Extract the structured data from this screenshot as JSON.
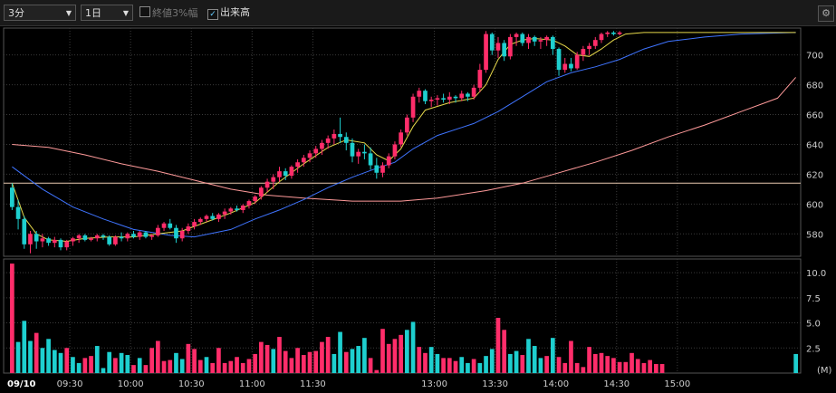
{
  "toolbar": {
    "interval": "3分",
    "period": "1日",
    "close3_label": "終値3%幅",
    "close3_checked": false,
    "volume_label": "出来高",
    "volume_checked": true
  },
  "colors": {
    "up": "#ff2d6a",
    "down": "#1ecfcf",
    "ma_fast": "#e6d84a",
    "ma_mid": "#3f74ff",
    "ma_slow": "#ff9a9a",
    "ref_line": "#e8c9b0",
    "grid": "#3a3a3a",
    "text": "#cccccc"
  },
  "chart_data": [
    {
      "type": "candlestick",
      "ylim": [
        565,
        718
      ],
      "yticks": [
        580,
        600,
        620,
        640,
        660,
        680,
        700
      ],
      "reference_line": 614,
      "x_tick_labels": [
        "09/10",
        "09:30",
        "10:00",
        "10:30",
        "11:00",
        "11:30",
        "13:00",
        "13:30",
        "14:00",
        "14:30",
        "15:00"
      ],
      "candles": [
        [
          611,
          614,
          596,
          598
        ],
        [
          598,
          603,
          583,
          590
        ],
        [
          590,
          592,
          570,
          573
        ],
        [
          573,
          582,
          567,
          580
        ],
        [
          580,
          582,
          570,
          575
        ],
        [
          575,
          580,
          571,
          577
        ],
        [
          577,
          578,
          572,
          574
        ],
        [
          574,
          578,
          571,
          576
        ],
        [
          576,
          577,
          569,
          571
        ],
        [
          571,
          576,
          569,
          575
        ],
        [
          575,
          578,
          572,
          577
        ],
        [
          577,
          580,
          574,
          579
        ],
        [
          579,
          580,
          575,
          576
        ],
        [
          576,
          578,
          575,
          577
        ],
        [
          577,
          580,
          575,
          579
        ],
        [
          579,
          580,
          576,
          578
        ],
        [
          578,
          579,
          572,
          573
        ],
        [
          573,
          579,
          572,
          578
        ],
        [
          578,
          581,
          575,
          577
        ],
        [
          577,
          581,
          575,
          580
        ],
        [
          580,
          582,
          577,
          578
        ],
        [
          578,
          582,
          576,
          581
        ],
        [
          581,
          582,
          577,
          578
        ],
        [
          578,
          580,
          576,
          579
        ],
        [
          579,
          586,
          578,
          584
        ],
        [
          584,
          588,
          582,
          587
        ],
        [
          587,
          590,
          583,
          584
        ],
        [
          584,
          586,
          574,
          577
        ],
        [
          577,
          584,
          575,
          582
        ],
        [
          582,
          587,
          580,
          585
        ],
        [
          585,
          590,
          583,
          588
        ],
        [
          588,
          591,
          586,
          590
        ],
        [
          590,
          593,
          588,
          592
        ],
        [
          592,
          594,
          589,
          590
        ],
        [
          590,
          594,
          588,
          593
        ],
        [
          593,
          597,
          590,
          595
        ],
        [
          595,
          598,
          593,
          597
        ],
        [
          597,
          599,
          595,
          596
        ],
        [
          596,
          600,
          594,
          599
        ],
        [
          599,
          603,
          597,
          602
        ],
        [
          602,
          606,
          600,
          605
        ],
        [
          605,
          612,
          603,
          611
        ],
        [
          611,
          617,
          608,
          615
        ],
        [
          615,
          620,
          610,
          618
        ],
        [
          618,
          625,
          615,
          622
        ],
        [
          622,
          624,
          616,
          619
        ],
        [
          619,
          626,
          617,
          625
        ],
        [
          625,
          630,
          621,
          628
        ],
        [
          628,
          633,
          625,
          631
        ],
        [
          631,
          636,
          628,
          634
        ],
        [
          634,
          639,
          631,
          637
        ],
        [
          637,
          643,
          633,
          641
        ],
        [
          641,
          646,
          637,
          644
        ],
        [
          644,
          650,
          640,
          647
        ],
        [
          647,
          658,
          641,
          645
        ],
        [
          645,
          648,
          636,
          641
        ],
        [
          641,
          644,
          628,
          632
        ],
        [
          632,
          637,
          627,
          635
        ],
        [
          635,
          640,
          630,
          634
        ],
        [
          634,
          638,
          623,
          626
        ],
        [
          626,
          631,
          617,
          621
        ],
        [
          621,
          628,
          618,
          626
        ],
        [
          626,
          634,
          624,
          632
        ],
        [
          632,
          642,
          630,
          640
        ],
        [
          640,
          650,
          638,
          648
        ],
        [
          648,
          660,
          646,
          658
        ],
        [
          658,
          674,
          655,
          672
        ],
        [
          672,
          678,
          668,
          676
        ],
        [
          676,
          677,
          667,
          669
        ],
        [
          669,
          672,
          665,
          670
        ],
        [
          670,
          673,
          666,
          671
        ],
        [
          671,
          674,
          668,
          670
        ],
        [
          670,
          675,
          667,
          672
        ],
        [
          672,
          673,
          668,
          671
        ],
        [
          671,
          676,
          669,
          674
        ],
        [
          674,
          675,
          669,
          672
        ],
        [
          672,
          680,
          670,
          678
        ],
        [
          678,
          694,
          675,
          690
        ],
        [
          690,
          716,
          688,
          714
        ],
        [
          714,
          715,
          700,
          703
        ],
        [
          703,
          712,
          698,
          708
        ],
        [
          708,
          710,
          696,
          699
        ],
        [
          699,
          714,
          697,
          712
        ],
        [
          712,
          715,
          706,
          714
        ],
        [
          714,
          715,
          706,
          708
        ],
        [
          708,
          714,
          704,
          712
        ],
        [
          712,
          713,
          706,
          709
        ],
        [
          709,
          712,
          704,
          710
        ],
        [
          710,
          713,
          706,
          712
        ],
        [
          712,
          713,
          700,
          704
        ],
        [
          704,
          705,
          686,
          690
        ],
        [
          690,
          698,
          688,
          694
        ],
        [
          694,
          698,
          689,
          691
        ],
        [
          691,
          702,
          690,
          700
        ],
        [
          700,
          706,
          696,
          704
        ],
        [
          704,
          708,
          700,
          706
        ],
        [
          706,
          712,
          704,
          710
        ],
        [
          710,
          715,
          708,
          714
        ],
        [
          714,
          716,
          712,
          715
        ],
        [
          715,
          716,
          713,
          714
        ],
        [
          714,
          716,
          713,
          715
        ]
      ],
      "ma_fast": [
        [
          0,
          614
        ],
        [
          2,
          591
        ],
        [
          4,
          580
        ],
        [
          6,
          576
        ],
        [
          9,
          575
        ],
        [
          12,
          577
        ],
        [
          16,
          578
        ],
        [
          20,
          578
        ],
        [
          24,
          580
        ],
        [
          28,
          582
        ],
        [
          32,
          588
        ],
        [
          36,
          594
        ],
        [
          40,
          601
        ],
        [
          44,
          615
        ],
        [
          48,
          627
        ],
        [
          52,
          638
        ],
        [
          55,
          643
        ],
        [
          58,
          641
        ],
        [
          60,
          633
        ],
        [
          62,
          629
        ],
        [
          64,
          637
        ],
        [
          66,
          652
        ],
        [
          68,
          663
        ],
        [
          72,
          668
        ],
        [
          76,
          671
        ],
        [
          78,
          680
        ],
        [
          80,
          697
        ],
        [
          82,
          707
        ],
        [
          84,
          710
        ],
        [
          86,
          711
        ],
        [
          89,
          710
        ],
        [
          91,
          706
        ],
        [
          93,
          700
        ],
        [
          95,
          699
        ],
        [
          97,
          704
        ],
        [
          99,
          710
        ],
        [
          101,
          714
        ],
        [
          104,
          715
        ],
        [
          108,
          715
        ],
        [
          129,
          715
        ]
      ],
      "ma_mid": [
        [
          0,
          625
        ],
        [
          5,
          610
        ],
        [
          10,
          598
        ],
        [
          15,
          590
        ],
        [
          20,
          583
        ],
        [
          26,
          579
        ],
        [
          30,
          578
        ],
        [
          36,
          583
        ],
        [
          40,
          590
        ],
        [
          44,
          596
        ],
        [
          48,
          603
        ],
        [
          52,
          611
        ],
        [
          56,
          618
        ],
        [
          60,
          624
        ],
        [
          63,
          628
        ],
        [
          66,
          637
        ],
        [
          70,
          646
        ],
        [
          76,
          654
        ],
        [
          80,
          662
        ],
        [
          84,
          672
        ],
        [
          88,
          682
        ],
        [
          92,
          688
        ],
        [
          96,
          692
        ],
        [
          100,
          697
        ],
        [
          104,
          704
        ],
        [
          108,
          709
        ],
        [
          114,
          712
        ],
        [
          120,
          714
        ],
        [
          129,
          715
        ]
      ],
      "ma_slow": [
        [
          0,
          640
        ],
        [
          6,
          638
        ],
        [
          12,
          633
        ],
        [
          18,
          627
        ],
        [
          24,
          622
        ],
        [
          30,
          616
        ],
        [
          36,
          610
        ],
        [
          42,
          606
        ],
        [
          48,
          604
        ],
        [
          56,
          602
        ],
        [
          64,
          602
        ],
        [
          70,
          604
        ],
        [
          78,
          609
        ],
        [
          84,
          614
        ],
        [
          90,
          621
        ],
        [
          96,
          628
        ],
        [
          102,
          636
        ],
        [
          108,
          645
        ],
        [
          114,
          653
        ],
        [
          120,
          662
        ],
        [
          126,
          671
        ],
        [
          129,
          685
        ]
      ]
    },
    {
      "type": "bar",
      "ylabel": "(M)",
      "ylim": [
        0,
        11
      ],
      "yticks": [
        2.5,
        5.0,
        7.5,
        10.0
      ],
      "values": [
        10.9,
        3.1,
        5.2,
        3.2,
        4.0,
        2.5,
        3.4,
        2.3,
        2.0,
        2.5,
        1.6,
        1.0,
        1.5,
        1.7,
        2.7,
        0.5,
        2.1,
        1.5,
        2.0,
        1.8,
        0.8,
        1.5,
        0.8,
        2.5,
        3.2,
        1.2,
        1.3,
        2.0,
        1.4,
        2.9,
        2.4,
        1.3,
        1.6,
        1.0,
        2.5,
        1.0,
        1.2,
        1.6,
        1.0,
        1.4,
        1.9,
        3.1,
        2.8,
        2.4,
        3.6,
        2.2,
        1.5,
        2.5,
        1.8,
        2.1,
        2.2,
        3.1,
        3.6,
        1.9,
        4.1,
        2.1,
        2.4,
        2.7,
        3.5,
        1.5,
        0.3,
        4.4,
        2.9,
        3.4,
        3.8,
        4.3,
        5.1,
        2.6,
        2.0,
        2.6,
        1.9,
        1.5,
        1.5,
        1.2,
        1.6,
        1.0,
        1.4,
        1.0,
        1.7,
        2.4,
        5.5,
        4.3,
        1.9,
        2.2,
        1.8,
        3.4,
        2.7,
        1.5,
        1.7,
        3.5,
        1.6,
        1.0,
        3.2,
        1.0,
        0.6,
        2.6,
        1.9,
        2.0,
        1.7,
        1.5,
        1.1,
        1.1,
        2.0,
        1.4,
        1.0,
        1.3,
        0.9,
        0.9,
        0.0,
        0.0,
        0.0,
        0.0,
        0.0,
        0.0,
        0.0,
        0.0,
        0.0,
        0.0,
        0.0,
        0.0,
        0.0,
        0.0,
        0.0,
        0.0,
        0.0,
        0.0,
        0.0,
        0.0,
        0.0,
        1.9
      ],
      "directions": "uddduddddudduudddudduduuuuudduuuduuuuuuuuuuduuuuuuuuudduddduuuuuudduudduuudduddduudduddduduuuuuuuuuuuuuuuuuuuuuuuuuuuuu"
    }
  ]
}
